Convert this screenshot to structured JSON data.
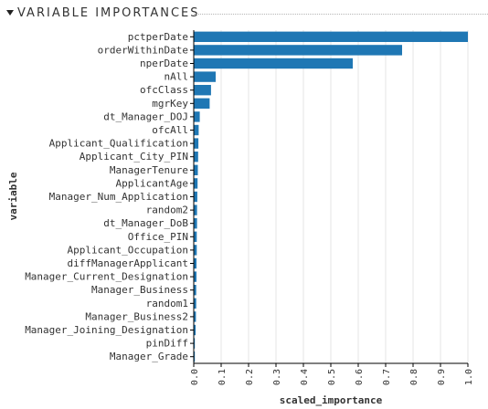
{
  "header": {
    "title": "VARIABLE IMPORTANCES"
  },
  "chart_data": {
    "type": "bar",
    "orientation": "horizontal",
    "xlabel": "scaled_importance",
    "ylabel": "variable",
    "xlim": [
      0,
      1.0
    ],
    "x_ticks": [
      "0.0",
      "0.1",
      "0.2",
      "0.3",
      "0.4",
      "0.5",
      "0.6",
      "0.7",
      "0.8",
      "0.9",
      "1.0"
    ],
    "grid": "vertical",
    "bar_color": "#1f77b4",
    "categories": [
      "pctperDate",
      "orderWithinDate",
      "nperDate",
      "nAll",
      "ofcClass",
      "mgrKey",
      "dt_Manager_DOJ",
      "ofcAll",
      "Applicant_Qualification",
      "Applicant_City_PIN",
      "ManagerTenure",
      "ApplicantAge",
      "Manager_Num_Application",
      "random2",
      "dt_Manager_DoB",
      "Office_PIN",
      "Applicant_Occupation",
      "diffManagerApplicant",
      "Manager_Current_Designation",
      "Manager_Business",
      "random1",
      "Manager_Business2",
      "Manager_Joining_Designation",
      "pinDiff",
      "Manager_Grade"
    ],
    "values": [
      1.0,
      0.76,
      0.58,
      0.08,
      0.063,
      0.058,
      0.022,
      0.018,
      0.017,
      0.016,
      0.015,
      0.014,
      0.013,
      0.012,
      0.012,
      0.011,
      0.011,
      0.01,
      0.01,
      0.009,
      0.009,
      0.008,
      0.007,
      0.004,
      0.003
    ]
  }
}
